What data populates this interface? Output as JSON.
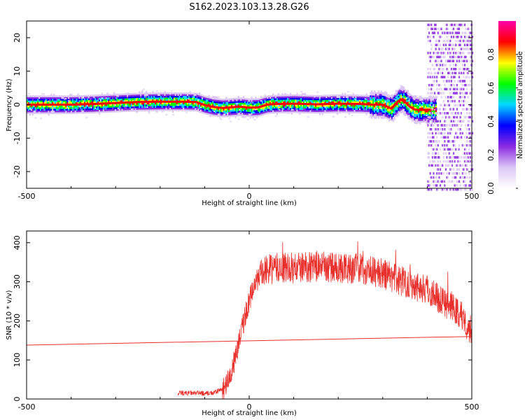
{
  "title": "S162.2023.103.13.28.G26",
  "chart_data": [
    {
      "type": "heatmap",
      "xlabel": "Height of straight line (km)",
      "ylabel": "Frequency (Hz)",
      "xlim": [
        -500,
        500
      ],
      "ylim": [
        -25,
        25
      ],
      "xticks": [
        -500,
        0,
        500
      ],
      "yticks": [
        -20,
        -10,
        0,
        10,
        20
      ],
      "colorbar": {
        "label": "Normalized spectral amplitude",
        "range": [
          0,
          1
        ],
        "ticks": [
          0.0,
          0.2,
          0.4,
          0.6,
          0.8
        ],
        "colors": [
          "#ffffff",
          "#dcc6f5",
          "#8a2be2",
          "#0000ff",
          "#00d8ff",
          "#00ff00",
          "#ffff00",
          "#ff0000",
          "#ff00aa"
        ]
      },
      "ridge": {
        "x": [
          -500,
          -450,
          -400,
          -350,
          -300,
          -250,
          -200,
          -150,
          -120,
          -100,
          -80,
          -60,
          -40,
          -20,
          0,
          20,
          40,
          60,
          100,
          150,
          200,
          250,
          280,
          300,
          320,
          330,
          340,
          350,
          360,
          370,
          380,
          400,
          410
        ],
        "frequency_hz": [
          0.0,
          0.0,
          0.0,
          0.2,
          0.5,
          0.8,
          0.9,
          0.9,
          0.8,
          -0.1,
          -0.7,
          -1.0,
          -0.8,
          -0.6,
          -0.9,
          -0.8,
          0.0,
          0.2,
          0.3,
          0.1,
          0.3,
          0.2,
          0.0,
          0.0,
          -1.2,
          0.5,
          1.6,
          0.8,
          -0.5,
          -1.4,
          -1.6,
          -1.5,
          -1.5
        ]
      },
      "colors": {
        "ridge_center": "#ff0000"
      }
    },
    {
      "type": "line",
      "xlabel": "Height of straight line (km)",
      "ylabel": "SNR (10 * v/v)",
      "xlim": [
        -500,
        500
      ],
      "ylim": [
        0,
        430
      ],
      "xticks": [
        -500,
        0,
        500
      ],
      "yticks": [
        0,
        100,
        200,
        300,
        400
      ],
      "series": [
        {
          "x": [
            -160,
            -120,
            -80,
            -60,
            -50,
            -40,
            -30,
            -20,
            -10,
            0,
            10,
            20,
            40,
            60,
            80,
            100,
            150,
            200,
            250,
            300,
            350,
            400,
            450,
            480,
            500
          ],
          "values": [
            15,
            15,
            15,
            25,
            40,
            70,
            110,
            160,
            210,
            250,
            285,
            310,
            330,
            335,
            335,
            335,
            340,
            335,
            335,
            320,
            300,
            280,
            240,
            210,
            170
          ],
          "noise": 40
        },
        {
          "x": [
            -500,
            500
          ],
          "values": [
            138,
            160
          ]
        }
      ],
      "colors": {
        "series": "#e8302c"
      }
    }
  ]
}
